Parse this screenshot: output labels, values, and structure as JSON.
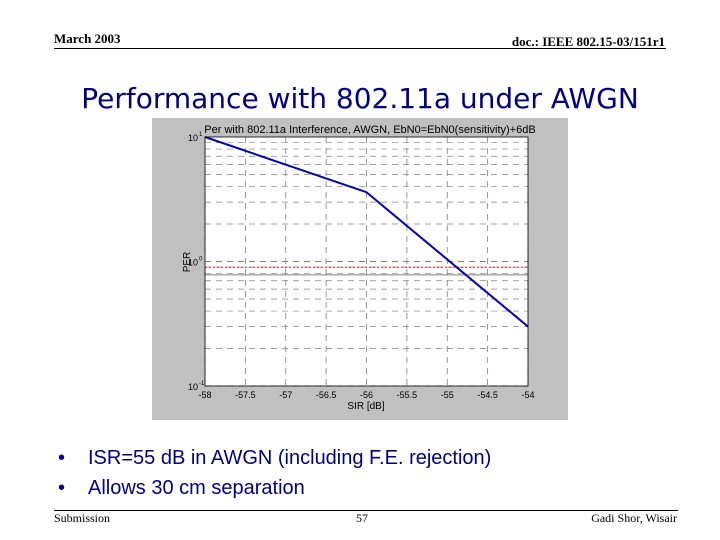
{
  "header": {
    "date": "March 2003",
    "doc_id": "doc.: IEEE 802.15-03/151r1"
  },
  "slide": {
    "title": "Performance with 802.11a under AWGN",
    "bullets": [
      "ISR=55 dB in AWGN (including F.E. rejection)",
      "Allows 30 cm separation"
    ]
  },
  "footer": {
    "left": "Submission",
    "page": "57",
    "author": "Gadi Shor, Wisair"
  },
  "chart_data": {
    "type": "line",
    "title": "Per with 802.11a Interference, AWGN, EbN0=EbN0(sensitivity)+6dB",
    "xlabel": "SIR [dB]",
    "ylabel": "PER",
    "x_ticks": [
      "-58",
      "-57.5",
      "-57",
      "-56.5",
      "-56",
      "-55.5",
      "-55",
      "-54.5",
      "-54"
    ],
    "xlim": [
      -58,
      -54
    ],
    "y_scale": "log",
    "ylim": [
      0.1,
      10
    ],
    "y_ticks": [
      {
        "mant": "10",
        "exp": "1",
        "value": 10
      },
      {
        "mant": "10",
        "exp": "0",
        "value": 1
      },
      {
        "mant": "10",
        "exp": "-1",
        "value": 0.1
      }
    ],
    "grid": true,
    "series": [
      {
        "color": "#0000c0",
        "x": [
          -58,
          -56,
          -54
        ],
        "y": [
          10,
          3.6,
          0.3
        ]
      }
    ],
    "reference_lines": [
      {
        "y": 0.9,
        "color": "#ff0000",
        "style": "dotted"
      },
      {
        "y": 0.78,
        "color": "#808080",
        "style": "solid"
      }
    ]
  }
}
